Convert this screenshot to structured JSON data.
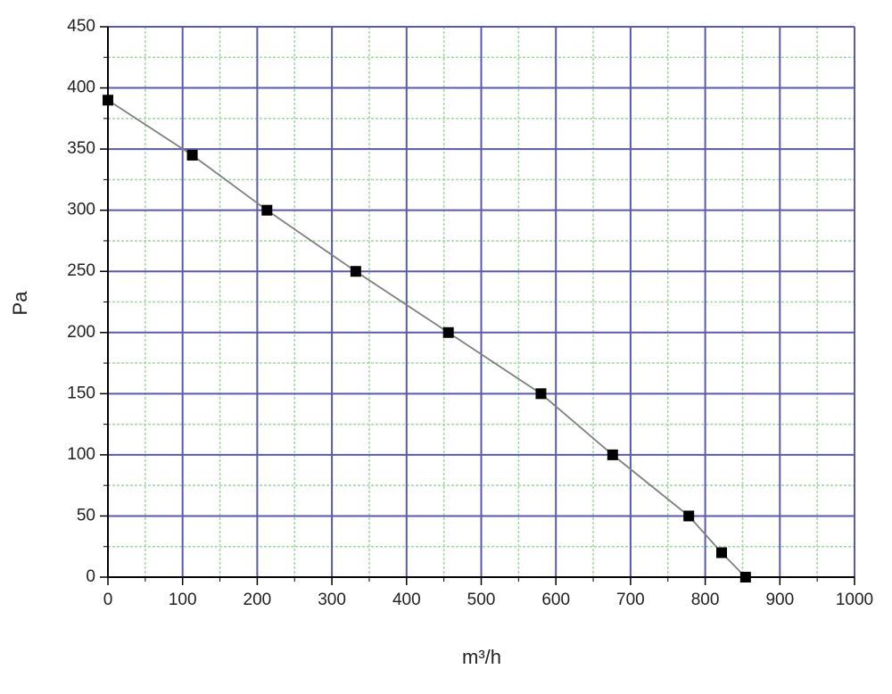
{
  "chart_data": {
    "type": "line",
    "x_label": "m³/h",
    "y_label": "Pa",
    "series": [
      {
        "name": "Pa",
        "color": "#000000",
        "line_color": "#808080",
        "x": [
          0,
          113,
          213,
          332,
          456,
          580,
          676,
          778,
          822,
          854
        ],
        "values": [
          390,
          345,
          300,
          250,
          200,
          150,
          100,
          50,
          20,
          0
        ]
      }
    ],
    "xlim": [
      0,
      1000
    ],
    "xticks": [
      0,
      100,
      200,
      300,
      400,
      500,
      600,
      700,
      800,
      900,
      1000
    ],
    "ylim": [
      0,
      450
    ],
    "yticks": [
      0,
      50,
      100,
      150,
      200,
      250,
      300,
      350,
      400,
      450
    ],
    "xminorticks": [
      50,
      150,
      250,
      350,
      450,
      550,
      650,
      750,
      850,
      950
    ],
    "yminorticks": [
      25,
      75,
      125,
      175,
      225,
      275,
      325,
      375,
      425
    ],
    "grid": true,
    "grid_color": "#5a5aa8",
    "minor_grid_color": "#9ed89e"
  }
}
